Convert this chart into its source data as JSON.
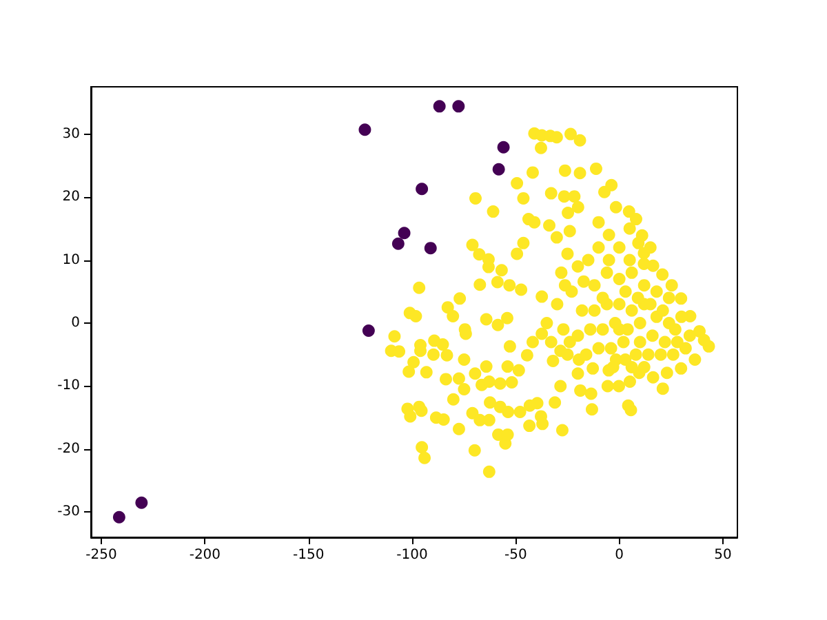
{
  "chart_data": {
    "type": "scatter",
    "xlim": [
      -255,
      57
    ],
    "ylim": [
      -34,
      37.5
    ],
    "xticks": [
      -250,
      -200,
      -150,
      -100,
      -50,
      0,
      50
    ],
    "yticks": [
      -30,
      -20,
      -10,
      0,
      10,
      20,
      30
    ],
    "grid": false,
    "marker": "circle",
    "series": [
      {
        "color": "#fde725",
        "x": [
          -41,
          -37.4,
          -33.3,
          -30.2,
          -37.8,
          -23.5,
          -19,
          -41.8,
          -26.2,
          -19,
          -11.2,
          -49.4,
          -46.3,
          -69.4,
          -32.9,
          -26.6,
          -21.7,
          -24.8,
          -60.9,
          -19.9,
          -3.8,
          -7.2,
          -1.6,
          4.7,
          8.1,
          -43.8,
          -41,
          -33.8,
          -46.3,
          -70.9,
          -67.6,
          -49.4,
          -63.1,
          -63.1,
          -56.8,
          -30.2,
          -23.9,
          11,
          9.2,
          11.9,
          -96.6,
          -67.3,
          -58.8,
          -53,
          -47.4,
          -77,
          -82.8,
          -80.3,
          -101.1,
          -98.2,
          -64.2,
          -58.6,
          -54.1,
          -37.4,
          -26.2,
          -17.2,
          -108.5,
          -110.1,
          -106.3,
          -96,
          -96,
          -89.3,
          -85.2,
          -89.7,
          -74.5,
          -74.1,
          -99.3,
          -101.6,
          -93.1,
          -83.2,
          -74.9,
          -83.7,
          -77.4,
          -69.6,
          -64.2,
          -66.4,
          -62.8,
          -57.5,
          -51.9,
          -53.9,
          -48.5,
          -52.8,
          -44.5,
          -41.8,
          -37.4,
          -32.9,
          -28.4,
          -23.9,
          -19.5,
          -12.8,
          -5.1,
          -1.6,
          -102.2,
          -100.9,
          -96.6,
          -95.5,
          -80.1,
          -74.9,
          -70.9,
          -67.3,
          -62.8,
          -62.4,
          -57.5,
          -53.7,
          -47.9,
          -43.2,
          -39.6,
          -37.8,
          -31.1,
          -28.4,
          -18.8,
          -13.6,
          -13.2,
          -5.6,
          -0.2,
          4.3,
          5.6,
          21,
          -88.4,
          -84.8,
          -77.4,
          -43.4,
          -37.1,
          -27.5,
          -58.4,
          -55,
          -53.9,
          -95.3,
          -94,
          -69.8,
          -62.8,
          43.2,
          40.9,
          38.7,
          34.2,
          29.8,
          25.3,
          20.8,
          16.3,
          11.9,
          36.5,
          29.8,
          23,
          16.3,
          9.6,
          5.1,
          2.9,
          -15,
          -10,
          -5,
          0,
          5,
          -12,
          -6,
          0,
          6,
          12,
          18,
          24,
          -18,
          -12,
          -6,
          0,
          6,
          12,
          18,
          24,
          30,
          -20,
          -14,
          -8,
          -2,
          4,
          10,
          16,
          22,
          28,
          34,
          -16,
          -10,
          -4,
          2,
          8,
          14,
          20,
          26,
          32,
          6,
          12,
          -3,
          -8,
          3,
          9,
          15,
          21,
          27,
          -20,
          -25,
          -23,
          -28,
          -30,
          -35,
          -27,
          -32,
          -25,
          -20,
          10,
          0,
          -5,
          5,
          15,
          -10
        ],
        "values": [
          30.1,
          29.8,
          29.7,
          29.5,
          27.8,
          30,
          29,
          23.9,
          24.2,
          23.8,
          24.5,
          22.2,
          19.8,
          19.8,
          20.6,
          20.1,
          20.1,
          17.5,
          17.7,
          18.4,
          21.9,
          20.8,
          18.4,
          17.7,
          16.5,
          16.5,
          16,
          15.5,
          12.7,
          12.4,
          10.9,
          11,
          10.1,
          8.9,
          8.4,
          13.6,
          14.6,
          13.9,
          12.7,
          11.1,
          5.6,
          6.1,
          6.5,
          6,
          5.3,
          3.9,
          2.5,
          1.1,
          1.6,
          1.1,
          0.6,
          -0.3,
          0.8,
          4.2,
          6,
          6.6,
          -2.1,
          -4.4,
          -4.5,
          -3.5,
          -4.4,
          -2.8,
          -3.4,
          -5,
          -1,
          -1.7,
          -6.2,
          -7.7,
          -7.8,
          -5.1,
          -5.8,
          -8.9,
          -8.8,
          -8,
          -6.9,
          -9.8,
          -9.3,
          -9.6,
          -9.4,
          -6.9,
          -7.5,
          -3.7,
          -5.1,
          -3,
          -1.7,
          -3,
          -4.4,
          -3,
          -5.8,
          -7.2,
          -7.5,
          -5.8,
          -13.6,
          -14.8,
          -13.3,
          -13.9,
          -12.1,
          -10.5,
          -14.3,
          -15.4,
          -15.4,
          -12.6,
          -13.3,
          -14.1,
          -14.1,
          -13.1,
          -12.7,
          -14.8,
          -12.6,
          -10,
          -10.7,
          -11.2,
          -13.7,
          -10,
          -10,
          -13.1,
          -13.8,
          -10.4,
          -15,
          -15.3,
          -16.8,
          -16.3,
          -16,
          -17,
          -17.7,
          -19.1,
          -17.7,
          -19.7,
          -21.4,
          -20.2,
          -23.6,
          -3.7,
          -2.7,
          -1.3,
          1.1,
          3.9,
          6,
          7.7,
          9.1,
          9.4,
          -5.8,
          -7.2,
          -7.9,
          -8.6,
          -7.9,
          -9.3,
          -5.8,
          10,
          12,
          14,
          12,
          10,
          6,
          8,
          7,
          8,
          6,
          5,
          4,
          2,
          2,
          3,
          3,
          2,
          3,
          1,
          0,
          1,
          -2,
          -1,
          -1,
          0,
          -1,
          0,
          -2,
          -3,
          -3,
          -2,
          -5,
          -4,
          -4,
          -3,
          -5,
          -5,
          -5,
          -5,
          -4,
          -7,
          -7,
          -7,
          4,
          5,
          4,
          3,
          2,
          -1,
          9,
          11,
          5,
          8,
          3,
          0,
          -1,
          -6,
          -5,
          -8,
          -3,
          -1,
          10,
          15,
          12,
          16
        ]
      },
      {
        "color": "#440154",
        "x": [
          -86.8,
          -77.6,
          -122.8,
          -55.9,
          -58.2,
          -95.3,
          -103.8,
          -106.7,
          -91.1,
          -121,
          -230.6,
          -241.4
        ],
        "values": [
          34.4,
          34.4,
          30.7,
          27.9,
          24.4,
          21.3,
          14.3,
          12.6,
          11.9,
          -1.2,
          -28.5,
          -30.8
        ]
      }
    ]
  }
}
